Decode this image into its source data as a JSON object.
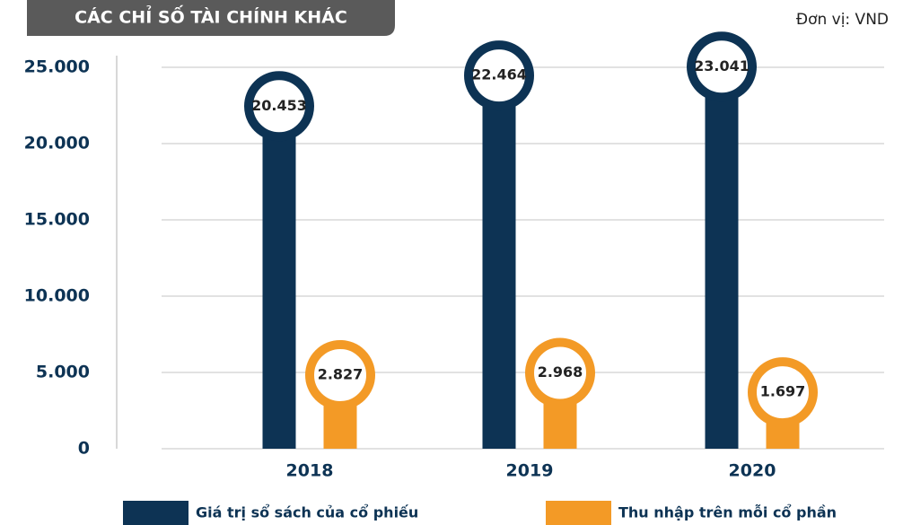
{
  "chart_data": {
    "type": "lollipop_bar",
    "title": "CÁC CHỈ SỐ TÀI CHÍNH KHÁC",
    "unit": "Đơn vị: VND",
    "categories": [
      "2018",
      "2019",
      "2020"
    ],
    "series": [
      {
        "name": "Giá trị sổ sách của cổ phiếu",
        "color": "#0d3354",
        "values": [
          20453,
          22464,
          23041
        ],
        "value_labels": [
          "20.453",
          "22.464",
          "23.041"
        ]
      },
      {
        "name": "Thu nhập trên mỗi cổ phần",
        "color": "#f39a26",
        "values": [
          2827,
          2968,
          1697
        ],
        "value_labels": [
          "2.827",
          "2.968",
          "1.697"
        ]
      }
    ],
    "ylim": [
      0,
      25000
    ],
    "yticks": [
      0,
      {
        "value": 5000,
        "label": "5.000"
      },
      {
        "value": 10000,
        "label": "10.000"
      },
      {
        "value": 15000,
        "label": "15.000"
      },
      {
        "value": 20000,
        "label": "20.000"
      },
      {
        "value": 25000,
        "label": "25.000"
      }
    ],
    "grid": true
  }
}
